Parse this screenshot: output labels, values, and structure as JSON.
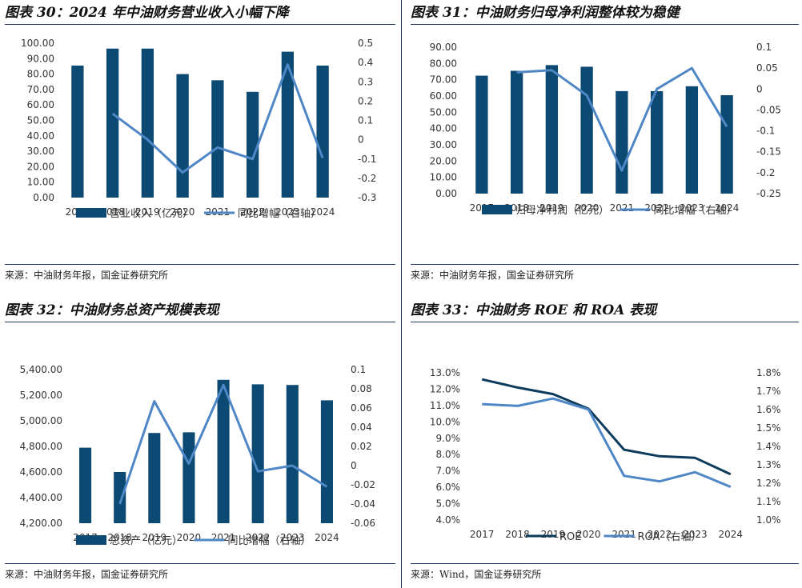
{
  "panels": [
    {
      "title": "图表 30：2024 年中油财务营业收入小幅下降",
      "source": "来源：中油财务年报，国金证券研究所",
      "chart_data": {
        "type": "bar",
        "categories": [
          "2017",
          "2018",
          "2019",
          "2020",
          "2021",
          "2022",
          "2023",
          "2024"
        ],
        "series": [
          {
            "name": "营业收入（亿元）",
            "type": "bar",
            "axis": "left",
            "color": "#0d4a73",
            "values": [
              85.5,
              96.5,
              96.5,
              80.0,
              76.0,
              68.5,
              94.5,
              85.5
            ]
          },
          {
            "name": "同比增幅（右轴）",
            "type": "line",
            "axis": "right",
            "color": "#4f86c6",
            "values": [
              null,
              0.135,
              0.0,
              -0.17,
              -0.04,
              -0.1,
              0.39,
              -0.095
            ]
          }
        ],
        "y_left": {
          "min": 0,
          "max": 100,
          "step": 10,
          "ticks": [
            "0.00",
            "10.00",
            "20.00",
            "30.00",
            "40.00",
            "50.00",
            "60.00",
            "70.00",
            "80.00",
            "90.00",
            "100.00"
          ]
        },
        "y_right": {
          "min": -0.3,
          "max": 0.5,
          "step": 0.1,
          "ticks": [
            "-0.3",
            "-0.2",
            "-0.1",
            "0",
            "0.1",
            "0.2",
            "0.3",
            "0.4",
            "0.5"
          ]
        },
        "legend": [
          "营业收入（亿元）",
          "同比增幅（右轴）"
        ]
      }
    },
    {
      "title": "图表 31：中油财务归母净利润整体较为稳健",
      "source": "来源：中油财务年报，国金证券研究所",
      "chart_data": {
        "type": "bar",
        "categories": [
          "2017",
          "2018",
          "2019",
          "2020",
          "2021",
          "2022",
          "2023",
          "2024"
        ],
        "series": [
          {
            "name": "归母净利润（亿元）",
            "type": "bar",
            "axis": "left",
            "color": "#0d4a73",
            "values": [
              72.5,
              75.5,
              79.0,
              78.0,
              63.0,
              63.0,
              66.0,
              60.5
            ]
          },
          {
            "name": "同比增幅（右轴）",
            "type": "line",
            "axis": "right",
            "color": "#4f86c6",
            "values": [
              null,
              0.04,
              0.045,
              -0.015,
              -0.195,
              0.0,
              0.05,
              -0.09
            ]
          }
        ],
        "y_left": {
          "min": 0,
          "max": 90,
          "step": 10,
          "ticks": [
            "0.00",
            "10.00",
            "20.00",
            "30.00",
            "40.00",
            "50.00",
            "60.00",
            "70.00",
            "80.00",
            "90.00"
          ]
        },
        "y_right": {
          "min": -0.25,
          "max": 0.1,
          "step": 0.05,
          "ticks": [
            "-0.25",
            "-0.2",
            "-0.15",
            "-0.1",
            "-0.05",
            "0",
            "0.05",
            "0.1"
          ]
        },
        "legend": [
          "归母净利润（亿元）",
          "同比增幅（右轴）"
        ]
      }
    },
    {
      "title": "图表 32：中油财务总资产规模表现",
      "source": "来源：中油财务年报，国金证券研究所",
      "chart_data": {
        "type": "bar",
        "categories": [
          "2017",
          "2018",
          "2019",
          "2020",
          "2021",
          "2022",
          "2023",
          "2024"
        ],
        "series": [
          {
            "name": "总资产（亿元）",
            "type": "bar",
            "axis": "left",
            "color": "#0d4a73",
            "values": [
              4790,
              4600,
              4905,
              4910,
              5320,
              5285,
              5280,
              5160
            ]
          },
          {
            "name": "同比增幅（右轴）",
            "type": "line",
            "axis": "right",
            "color": "#4f86c6",
            "values": [
              null,
              -0.04,
              0.067,
              0.002,
              0.084,
              -0.006,
              0.0,
              -0.022
            ]
          }
        ],
        "y_left": {
          "min": 4200,
          "max": 5400,
          "step": 200,
          "ticks": [
            "4,200.00",
            "4,400.00",
            "4,600.00",
            "4,800.00",
            "5,000.00",
            "5,200.00",
            "5,400.00"
          ]
        },
        "y_right": {
          "min": -0.06,
          "max": 0.1,
          "step": 0.02,
          "ticks": [
            "-0.06",
            "-0.04",
            "-0.02",
            "0",
            "0.02",
            "0.04",
            "0.06",
            "0.08",
            "0.1"
          ]
        },
        "legend": [
          "总资产（亿元）",
          "同比增幅（右轴）"
        ]
      }
    },
    {
      "title": "图表 33：中油财务 ROE 和 ROA 表现",
      "source": "来源：Wind，国金证券研究所",
      "chart_data": {
        "type": "line",
        "categories": [
          "2017",
          "2018",
          "2019",
          "2020",
          "2021",
          "2022",
          "2023",
          "2024"
        ],
        "series": [
          {
            "name": "ROE",
            "type": "line",
            "axis": "left",
            "color": "#0d3b5c",
            "values": [
              12.6,
              12.1,
              11.7,
              10.8,
              8.3,
              7.9,
              7.8,
              6.8
            ]
          },
          {
            "name": "ROA（右轴）",
            "type": "line",
            "axis": "right",
            "color": "#4f86c6",
            "values": [
              1.63,
              1.62,
              1.66,
              1.6,
              1.24,
              1.21,
              1.26,
              1.18
            ]
          }
        ],
        "y_left": {
          "min": 4,
          "max": 13,
          "step": 1,
          "ticks": [
            "4.0%",
            "5.0%",
            "6.0%",
            "7.0%",
            "8.0%",
            "9.0%",
            "10.0%",
            "11.0%",
            "12.0%",
            "13.0%"
          ]
        },
        "y_right": {
          "min": 1.0,
          "max": 1.8,
          "step": 0.1,
          "ticks": [
            "1.0%",
            "1.1%",
            "1.2%",
            "1.3%",
            "1.4%",
            "1.5%",
            "1.6%",
            "1.7%",
            "1.8%"
          ]
        },
        "legend": [
          "ROE",
          "ROA（右轴）"
        ]
      }
    }
  ]
}
